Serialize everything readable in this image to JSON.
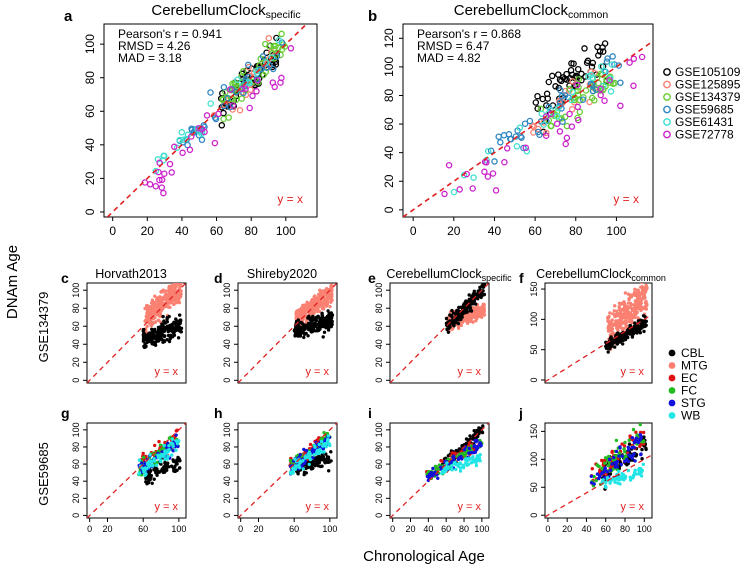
{
  "figure": {
    "x_axis_label": "Chronological Age",
    "y_axis_label": "DNAm Age",
    "row_label_1": "GSE134379",
    "row_label_2": "GSE59685",
    "clock_name": "CerebellumClock",
    "identity_label": "y = x"
  },
  "panels": {
    "a": {
      "letter": "a",
      "title": "CerebellumClock",
      "title_sub": "specific",
      "stat_1": "Pearson's r = 0.941",
      "stat_2": "RMSD = 4.26",
      "stat_3": "MAD = 3.18"
    },
    "b": {
      "letter": "b",
      "title": "CerebellumClock",
      "title_sub": "common",
      "stat_1": "Pearson's r = 0.868",
      "stat_2": "RMSD = 6.47",
      "stat_3": "MAD = 4.82"
    },
    "c": {
      "letter": "c",
      "title": "Horvath2013",
      "title_sub": ""
    },
    "d": {
      "letter": "d",
      "title": "Shireby2020",
      "title_sub": ""
    },
    "e": {
      "letter": "e",
      "title": "CerebellumClock",
      "title_sub": "specific"
    },
    "f": {
      "letter": "f",
      "title": "CerebellumClock",
      "title_sub": "common"
    },
    "g": {
      "letter": "g",
      "title": "",
      "title_sub": ""
    },
    "h": {
      "letter": "h",
      "title": "",
      "title_sub": ""
    },
    "i": {
      "letter": "i",
      "title": "",
      "title_sub": ""
    },
    "j": {
      "letter": "j",
      "title": "",
      "title_sub": ""
    }
  },
  "legend_datasets": [
    {
      "name": "GSE105109",
      "color": "#000000"
    },
    {
      "name": "GSE125895",
      "color": "#FA8072"
    },
    {
      "name": "GSE134379",
      "color": "#66CC33"
    },
    {
      "name": "GSE59685",
      "color": "#2E86C1"
    },
    {
      "name": "GSE61431",
      "color": "#40E0D0"
    },
    {
      "name": "GSE72778",
      "color": "#CC22CC"
    }
  ],
  "legend_regions": [
    {
      "name": "CBL",
      "color": "#000000"
    },
    {
      "name": "MTG",
      "color": "#FA8072"
    },
    {
      "name": "EC",
      "color": "#DD1111"
    },
    {
      "name": "FC",
      "color": "#22BB22"
    },
    {
      "name": "STG",
      "color": "#1111DD"
    },
    {
      "name": "WB",
      "color": "#22E5E5"
    }
  ],
  "chart_data": [
    {
      "id": "a",
      "type": "scatter",
      "title": "CerebellumClock specific",
      "xlabel": "Chronological Age",
      "ylabel": "DNAm Age",
      "xlim": [
        -5,
        118
      ],
      "ylim": [
        -3,
        112
      ],
      "xticks": [
        0,
        20,
        40,
        60,
        80,
        100
      ],
      "yticks": [
        0,
        20,
        40,
        60,
        80,
        100
      ],
      "marker": "open-circle",
      "series": [
        {
          "name": "GSE105109",
          "n": 55,
          "x_range": [
            62,
            96
          ],
          "slope": 1.0,
          "intercept": 0,
          "noise": 5
        },
        {
          "name": "GSE125895",
          "n": 20,
          "x_range": [
            58,
            92
          ],
          "slope": 1.0,
          "intercept": -1,
          "noise": 5
        },
        {
          "name": "GSE134379",
          "n": 45,
          "x_range": [
            62,
            100
          ],
          "slope": 1.0,
          "intercept": 1,
          "noise": 5
        },
        {
          "name": "GSE59685",
          "n": 40,
          "x_range": [
            38,
            98
          ],
          "slope": 1.0,
          "intercept": 0,
          "noise": 5
        },
        {
          "name": "GSE61431",
          "n": 25,
          "x_range": [
            24,
            98
          ],
          "slope": 1.0,
          "intercept": 0,
          "noise": 5
        },
        {
          "name": "GSE72778",
          "n": 35,
          "x_range": [
            15,
            114
          ],
          "slope": 0.92,
          "intercept": -2,
          "noise": 6
        }
      ]
    },
    {
      "id": "b",
      "type": "scatter",
      "title": "CerebellumClock common",
      "xlabel": "Chronological Age",
      "ylabel": "DNAm Age",
      "xlim": [
        -5,
        118
      ],
      "ylim": [
        -5,
        130
      ],
      "xticks": [
        0,
        20,
        40,
        60,
        80,
        100
      ],
      "yticks": [
        0,
        20,
        40,
        60,
        80,
        100,
        120
      ],
      "marker": "open-circle",
      "series": [
        {
          "name": "GSE105109",
          "n": 55,
          "x_range": [
            60,
            96
          ],
          "slope": 1.1,
          "intercept": 4,
          "noise": 8
        },
        {
          "name": "GSE125895",
          "n": 20,
          "x_range": [
            58,
            92
          ],
          "slope": 1.0,
          "intercept": 0,
          "noise": 6
        },
        {
          "name": "GSE134379",
          "n": 45,
          "x_range": [
            62,
            100
          ],
          "slope": 0.95,
          "intercept": 0,
          "noise": 6
        },
        {
          "name": "GSE59685",
          "n": 40,
          "x_range": [
            38,
            102
          ],
          "slope": 1.0,
          "intercept": 1,
          "noise": 7
        },
        {
          "name": "GSE61431",
          "n": 25,
          "x_range": [
            20,
            98
          ],
          "slope": 1.0,
          "intercept": 0,
          "noise": 6
        },
        {
          "name": "GSE72778",
          "n": 35,
          "x_range": [
            15,
            114
          ],
          "slope": 0.9,
          "intercept": -3,
          "noise": 8
        }
      ]
    },
    {
      "id": "c",
      "type": "scatter",
      "title": "Horvath2013",
      "row": "GSE134379",
      "xlim": [
        -3,
        108
      ],
      "ylim": [
        -3,
        108
      ],
      "xticks": [],
      "yticks": [
        0,
        20,
        40,
        60,
        80,
        100
      ],
      "marker": "filled-circle",
      "series": [
        {
          "name": "MTG",
          "n": 300,
          "x_range": [
            62,
            103
          ],
          "slope": 0.9,
          "intercept": 11,
          "noise": 7
        },
        {
          "name": "CBL",
          "n": 200,
          "x_range": [
            60,
            103
          ],
          "slope": 0.4,
          "intercept": 21,
          "noise": 6
        }
      ]
    },
    {
      "id": "d",
      "type": "scatter",
      "title": "Shireby2020",
      "row": "GSE134379",
      "xlim": [
        -3,
        108
      ],
      "ylim": [
        -3,
        108
      ],
      "xticks": [],
      "yticks": [
        0,
        20,
        40,
        60,
        80,
        100
      ],
      "marker": "filled-circle",
      "series": [
        {
          "name": "MTG",
          "n": 300,
          "x_range": [
            62,
            103
          ],
          "slope": 0.7,
          "intercept": 25,
          "noise": 5
        },
        {
          "name": "CBL",
          "n": 200,
          "x_range": [
            60,
            103
          ],
          "slope": 0.3,
          "intercept": 36,
          "noise": 5
        }
      ]
    },
    {
      "id": "e",
      "type": "scatter",
      "title": "CerebellumClock specific",
      "row": "GSE134379",
      "xlim": [
        -3,
        108
      ],
      "ylim": [
        -3,
        108
      ],
      "xticks": [],
      "yticks": [
        0,
        20,
        40,
        60,
        80,
        100
      ],
      "marker": "filled-circle",
      "series": [
        {
          "name": "MTG",
          "n": 250,
          "x_range": [
            62,
            103
          ],
          "slope": 0.35,
          "intercept": 42,
          "noise": 4
        },
        {
          "name": "CBL",
          "n": 200,
          "x_range": [
            60,
            103
          ],
          "slope": 0.95,
          "intercept": 3,
          "noise": 4
        }
      ]
    },
    {
      "id": "f",
      "type": "scatter",
      "title": "CerebellumClock common",
      "row": "GSE134379",
      "xlim": [
        -3,
        108
      ],
      "ylim": [
        -5,
        160
      ],
      "xticks": [],
      "yticks": [
        0,
        50,
        100,
        150
      ],
      "marker": "filled-circle",
      "series": [
        {
          "name": "MTG",
          "n": 300,
          "x_range": [
            62,
            103
          ],
          "slope": 1.4,
          "intercept": -5,
          "noise": 14
        },
        {
          "name": "CBL",
          "n": 200,
          "x_range": [
            60,
            103
          ],
          "slope": 0.9,
          "intercept": 2,
          "noise": 5
        }
      ]
    },
    {
      "id": "g",
      "type": "scatter",
      "row": "GSE59685",
      "xlim": [
        -3,
        108
      ],
      "ylim": [
        -3,
        108
      ],
      "xticks": [
        0,
        20,
        60,
        100
      ],
      "yticks": [
        0,
        20,
        40,
        60,
        80,
        100
      ],
      "marker": "filled-circle",
      "series": [
        {
          "name": "CBL",
          "n": 90,
          "x_range": [
            62,
            102
          ],
          "slope": 0.45,
          "intercept": 17,
          "noise": 5
        },
        {
          "name": "EC",
          "n": 60,
          "x_range": [
            55,
            100
          ],
          "slope": 0.75,
          "intercept": 16,
          "noise": 5
        },
        {
          "name": "FC",
          "n": 60,
          "x_range": [
            55,
            100
          ],
          "slope": 0.75,
          "intercept": 14,
          "noise": 5
        },
        {
          "name": "STG",
          "n": 60,
          "x_range": [
            55,
            100
          ],
          "slope": 0.75,
          "intercept": 12,
          "noise": 5
        },
        {
          "name": "WB",
          "n": 60,
          "x_range": [
            55,
            100
          ],
          "slope": 0.75,
          "intercept": 10,
          "noise": 5
        }
      ]
    },
    {
      "id": "h",
      "type": "scatter",
      "row": "GSE59685",
      "xlim": [
        -3,
        108
      ],
      "ylim": [
        -3,
        108
      ],
      "xticks": [
        0,
        20,
        60,
        100
      ],
      "yticks": [
        0,
        20,
        40,
        60,
        80,
        100
      ],
      "marker": "filled-circle",
      "series": [
        {
          "name": "CBL",
          "n": 90,
          "x_range": [
            62,
            102
          ],
          "slope": 0.4,
          "intercept": 28,
          "noise": 5
        },
        {
          "name": "EC",
          "n": 60,
          "x_range": [
            55,
            100
          ],
          "slope": 0.8,
          "intercept": 14,
          "noise": 4
        },
        {
          "name": "FC",
          "n": 60,
          "x_range": [
            55,
            100
          ],
          "slope": 0.8,
          "intercept": 12,
          "noise": 4
        },
        {
          "name": "STG",
          "n": 60,
          "x_range": [
            55,
            100
          ],
          "slope": 0.8,
          "intercept": 10,
          "noise": 4
        },
        {
          "name": "WB",
          "n": 60,
          "x_range": [
            55,
            100
          ],
          "slope": 0.8,
          "intercept": 8,
          "noise": 4
        }
      ]
    },
    {
      "id": "i",
      "type": "scatter",
      "row": "GSE59685",
      "xlim": [
        -3,
        108
      ],
      "ylim": [
        -3,
        108
      ],
      "xticks": [
        0,
        20,
        40,
        60,
        80,
        100
      ],
      "yticks": [
        0,
        20,
        40,
        60,
        80,
        100
      ],
      "marker": "filled-circle",
      "series": [
        {
          "name": "CBL",
          "n": 90,
          "x_range": [
            55,
            102
          ],
          "slope": 0.95,
          "intercept": 5,
          "noise": 4
        },
        {
          "name": "EC",
          "n": 60,
          "x_range": [
            38,
            100
          ],
          "slope": 0.6,
          "intercept": 25,
          "noise": 4
        },
        {
          "name": "FC",
          "n": 60,
          "x_range": [
            38,
            100
          ],
          "slope": 0.6,
          "intercept": 24,
          "noise": 4
        },
        {
          "name": "STG",
          "n": 60,
          "x_range": [
            38,
            100
          ],
          "slope": 0.6,
          "intercept": 23,
          "noise": 4
        },
        {
          "name": "WB",
          "n": 60,
          "x_range": [
            55,
            100
          ],
          "slope": 0.3,
          "intercept": 37,
          "noise": 3
        }
      ]
    },
    {
      "id": "j",
      "type": "scatter",
      "row": "GSE59685",
      "xlim": [
        -3,
        108
      ],
      "ylim": [
        -5,
        165
      ],
      "xticks": [
        0,
        20,
        40,
        60,
        80,
        100
      ],
      "yticks": [
        0,
        50,
        100,
        150
      ],
      "marker": "filled-circle",
      "series": [
        {
          "name": "CBL",
          "n": 90,
          "x_range": [
            55,
            102
          ],
          "slope": 1.2,
          "intercept": 5,
          "noise": 10
        },
        {
          "name": "EC",
          "n": 60,
          "x_range": [
            45,
            100
          ],
          "slope": 1.35,
          "intercept": 8,
          "noise": 12
        },
        {
          "name": "FC",
          "n": 60,
          "x_range": [
            45,
            100
          ],
          "slope": 1.3,
          "intercept": 8,
          "noise": 12
        },
        {
          "name": "STG",
          "n": 60,
          "x_range": [
            45,
            100
          ],
          "slope": 1.3,
          "intercept": 6,
          "noise": 12
        },
        {
          "name": "WB",
          "n": 60,
          "x_range": [
            55,
            100
          ],
          "slope": 0.5,
          "intercept": 30,
          "noise": 5
        }
      ]
    }
  ]
}
